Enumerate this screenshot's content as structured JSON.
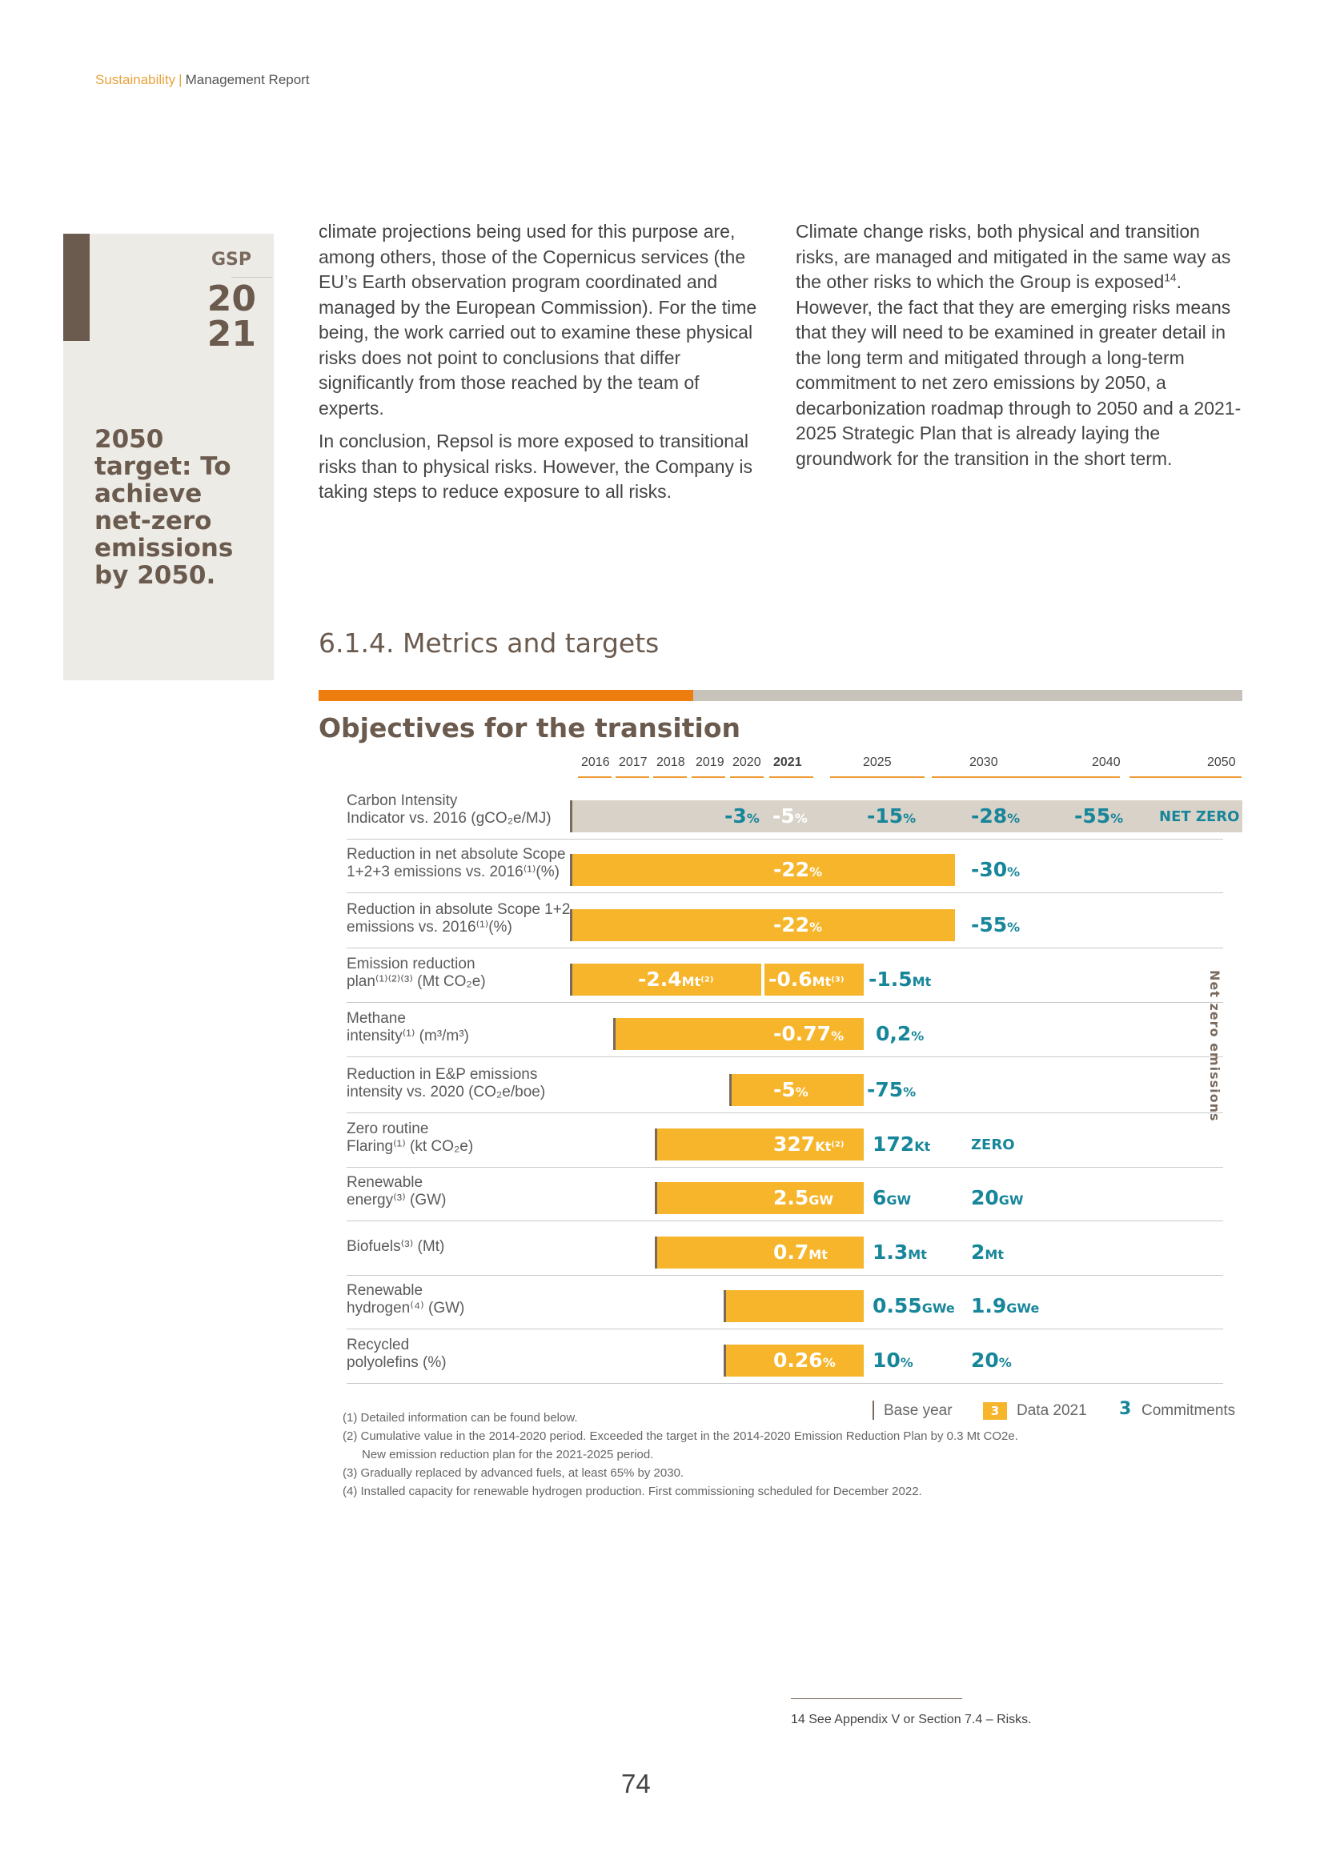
{
  "header": {
    "section": "Sustainability",
    "separator": "|",
    "report": "Management Report"
  },
  "sidebar": {
    "gsp": "GSP",
    "year_top": "20",
    "year_bottom": "21",
    "target": "2050 target: To achieve net-zero emissions by 2050."
  },
  "body": {
    "col1_p1": "climate projections being used for this purpose are, among others, those of the Copernicus services (the EU’s Earth observation program coordinated and managed by the European Commission). For the time being, the work carried out to examine these physical risks does not point to conclusions that differ significantly from those reached by the team of experts.",
    "col1_p2": "In conclusion, Repsol is more exposed to transitional risks than to physical risks. However, the Company is taking steps to reduce exposure to all risks.",
    "col2_p1a": "Climate change risks, both physical and transition risks, are managed and mitigated in the same way as the other risks to which the Group is exposed",
    "col2_sup": "14",
    "col2_p1b": ". However, the fact that they are emerging risks means that they will need to be examined in greater detail in the long term and mitigated through a long-term commitment to net zero emissions by 2050, a decarbonization roadmap through to 2050 and a 2021-2025 Strategic Plan that is already laying the groundwork for the transition in the short term."
  },
  "section_title": "6.1.4. Metrics and targets",
  "objectives_title": "Objectives for the transition",
  "chart_data": {
    "type": "table",
    "years": [
      "2016",
      "2017",
      "2018",
      "2019",
      "2020",
      "2021",
      "2025",
      "2030",
      "2040",
      "2050"
    ],
    "side_label": "Net zero emissions",
    "rows": [
      {
        "label_lines": [
          "Carbon Intensity",
          "Indicator vs. 2016 (gCO₂e/MJ)"
        ],
        "values": [
          {
            "num": "-3",
            "unit": "%"
          },
          {
            "num": "-5",
            "unit": "%"
          },
          {
            "num": "-15",
            "unit": "%"
          },
          {
            "num": "-28",
            "unit": "%"
          },
          {
            "num": "-55",
            "unit": "%"
          },
          {
            "num": "NET ZERO",
            "unit": ""
          }
        ]
      },
      {
        "label_lines": [
          "Reduction in net absolute Scope",
          "1+2+3 emissions vs. 2016⁽¹⁾(%)"
        ],
        "values": [
          {
            "num": "-22",
            "unit": "%"
          },
          {
            "num": "-30",
            "unit": "%"
          }
        ]
      },
      {
        "label_lines": [
          "Reduction in absolute Scope 1+2",
          "emissions vs. 2016⁽¹⁾(%)"
        ],
        "values": [
          {
            "num": "-22",
            "unit": "%"
          },
          {
            "num": "-55",
            "unit": "%"
          }
        ]
      },
      {
        "label_lines": [
          "Emission reduction",
          "plan⁽¹⁾⁽²⁾⁽³⁾ (Mt CO₂e)"
        ],
        "values": [
          {
            "num": "-2.4",
            "unit": "Mt⁽²⁾"
          },
          {
            "num": "-0.6",
            "unit": "Mt⁽³⁾"
          },
          {
            "num": "-1.5",
            "unit": "Mt"
          }
        ]
      },
      {
        "label_lines": [
          "Methane",
          "intensity⁽¹⁾ (m³/m³)"
        ],
        "values": [
          {
            "num": "-0.77",
            "unit": "%"
          },
          {
            "num": "0,2",
            "unit": "%"
          }
        ]
      },
      {
        "label_lines": [
          "Reduction in E&P emissions",
          "intensity vs. 2020 (CO₂e/boe)"
        ],
        "values": [
          {
            "num": "-5",
            "unit": "%"
          },
          {
            "num": "-75",
            "unit": "%"
          }
        ]
      },
      {
        "label_lines": [
          "Zero routine",
          "Flaring⁽¹⁾ (kt CO₂e)"
        ],
        "values": [
          {
            "num": "327",
            "unit": "Kt⁽²⁾"
          },
          {
            "num": "172",
            "unit": "Kt"
          },
          {
            "num": "ZERO",
            "unit": ""
          }
        ]
      },
      {
        "label_lines": [
          "Renewable",
          "energy⁽³⁾ (GW)"
        ],
        "values": [
          {
            "num": "2.5",
            "unit": "GW"
          },
          {
            "num": "6",
            "unit": "GW"
          },
          {
            "num": "20",
            "unit": "GW"
          }
        ]
      },
      {
        "label_lines": [
          "Biofuels⁽³⁾ (Mt)"
        ],
        "values": [
          {
            "num": "0.7",
            "unit": "Mt"
          },
          {
            "num": "1.3",
            "unit": "Mt"
          },
          {
            "num": "2",
            "unit": "Mt"
          }
        ]
      },
      {
        "label_lines": [
          "Renewable",
          "hydrogen⁽⁴⁾ (GW)"
        ],
        "values": [
          {
            "num": "0.55",
            "unit": "GWe"
          },
          {
            "num": "1.9",
            "unit": "GWe"
          }
        ]
      },
      {
        "label_lines": [
          "Recycled",
          "polyolefins (%)"
        ],
        "values": [
          {
            "num": "0.26",
            "unit": "%"
          },
          {
            "num": "10",
            "unit": "%"
          },
          {
            "num": "20",
            "unit": "%"
          }
        ]
      }
    ],
    "legend": {
      "base_year": "Base year",
      "data_sample": "3",
      "data": "Data 2021",
      "commit_sample": "3",
      "commitments": "Commitments"
    },
    "colors": {
      "data_bar": "#f6b52b",
      "commitment_text": "#17869a",
      "carbon_bar": "#d8d2c8",
      "base_year": "#7a6a5e"
    }
  },
  "notes": [
    "(1) Detailed information can be found below.",
    "(2) Cumulative value in the 2014-2020 period. Exceeded the target in the 2014-2020 Emission Reduction Plan by 0.3 Mt CO2e.",
    "New emission reduction plan for the 2021-2025 period.",
    "(3) Gradually replaced by advanced fuels, at least 65% by 2030.",
    "(4) Installed capacity for renewable hydrogen production. First commissioning scheduled for December 2022."
  ],
  "footnote": "14 See Appendix V or Section 7.4 – Risks.",
  "page_number": "74"
}
